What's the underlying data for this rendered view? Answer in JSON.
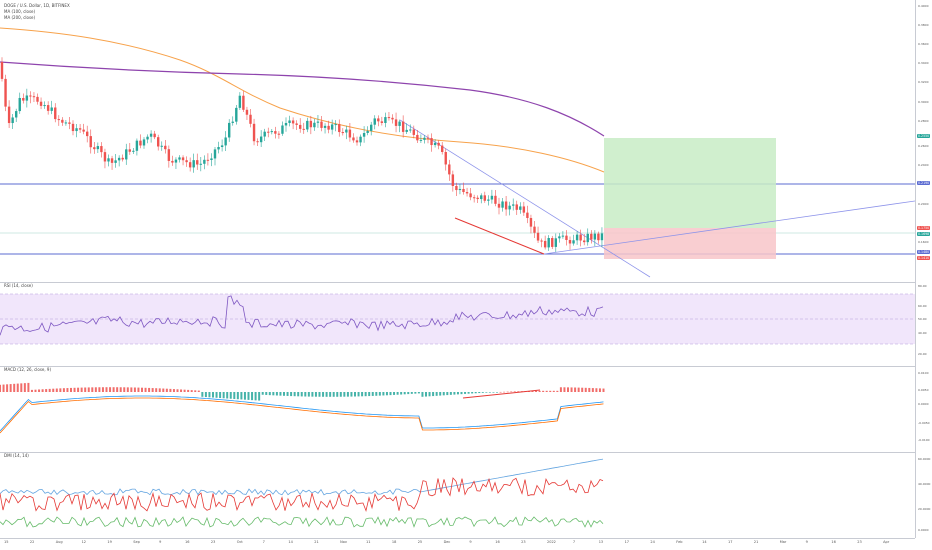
{
  "main": {
    "legend": [
      "DOGE / U.S. Dollar, 1D, BITFINEX",
      "MA (100, close)",
      "MA (200, close)"
    ],
    "price_ticks": [
      "0.4000",
      "0.3800",
      "0.3600",
      "0.3400",
      "0.3200",
      "0.3000",
      "0.2800",
      "0.2600",
      "0.2400",
      "0.2200",
      "0.2000",
      "0.1800",
      "0.1600",
      "0.1400"
    ],
    "tags": [
      {
        "text": "0.2550",
        "color": "#26a69a"
      },
      {
        "text": "0.2190",
        "color": "#5b6bd1"
      },
      {
        "text": "0.1750",
        "color": "#ef5350"
      },
      {
        "text": "0.1698",
        "color": "#26a69a"
      },
      {
        "text": "0.1480",
        "color": "#5b6bd1"
      },
      {
        "text": "0.1410",
        "color": "#ef5350"
      }
    ]
  },
  "rsi": {
    "legend": "RSI (14, close)",
    "ticks": [
      "80.00",
      "60.00",
      "50.00",
      "40.00",
      "20.00"
    ]
  },
  "macd": {
    "legend": "MACD (12, 26, close, 9)",
    "ticks": [
      "0.0100",
      "0.0050",
      "0.0000",
      "-0.0050",
      "-0.0100"
    ]
  },
  "dmi": {
    "legend": "DMI (14, 14)",
    "ticks": [
      "60.0000",
      "40.0000",
      "20.0000",
      "0.0000"
    ]
  },
  "x_axis": [
    "15",
    "22",
    "Aug",
    "12",
    "19",
    "Sep",
    "9",
    "16",
    "23",
    "Oct",
    "7",
    "14",
    "21",
    "Nov",
    "11",
    "18",
    "25",
    "Dec",
    "9",
    "16",
    "23",
    "2022",
    "7",
    "13",
    "17",
    "24",
    "Feb",
    "14",
    "17",
    "21",
    "Mar",
    "9",
    "16",
    "23",
    "Apr"
  ],
  "colors": {
    "up": "#26a69a",
    "down": "#ef5350",
    "ma100": "#f7a24b",
    "ma200": "#8e44ad",
    "trend": "#7e86e8"
  }
}
